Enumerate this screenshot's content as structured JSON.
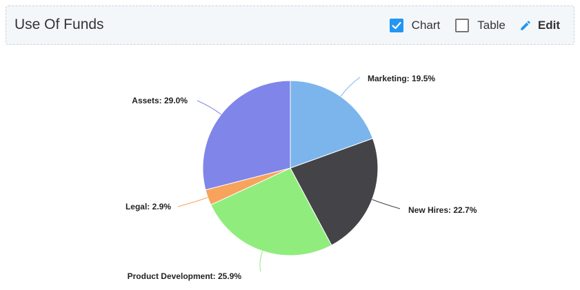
{
  "header": {
    "title": "Use Of Funds",
    "chart_toggle_label": "Chart",
    "table_toggle_label": "Table",
    "edit_label": "Edit",
    "chart_toggle_checked": true,
    "table_toggle_checked": false,
    "accent_color": "#2196f3"
  },
  "chart_data": {
    "type": "pie",
    "slices": [
      {
        "label": "Marketing",
        "value": 19.5,
        "display": "Marketing: 19.5%",
        "color": "#7cb5ec"
      },
      {
        "label": "New Hires",
        "value": 22.7,
        "display": "New Hires: 22.7%",
        "color": "#434348"
      },
      {
        "label": "Product Development",
        "value": 25.9,
        "display": "Product Development: 25.9%",
        "color": "#90ed7d"
      },
      {
        "label": "Legal",
        "value": 2.9,
        "display": "Legal: 2.9%",
        "color": "#f7a35c"
      },
      {
        "label": "Assets",
        "value": 29.0,
        "display": "Assets: 29.0%",
        "color": "#8085e9"
      }
    ]
  }
}
